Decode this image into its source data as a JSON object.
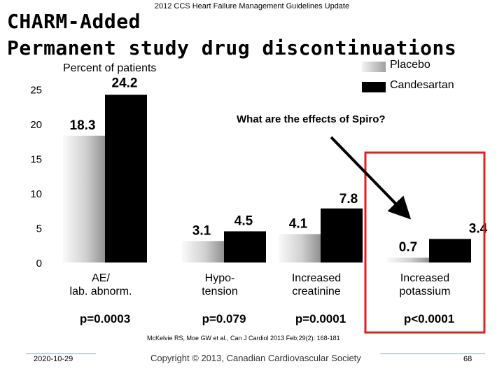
{
  "header": {
    "guideline": "2012 CCS Heart Failure Management Guidelines Update",
    "title_line1": "CHARM-Added",
    "title_line2": "Permanent study drug discontinuations"
  },
  "annotation": {
    "question": "What are the effects of Spiro?"
  },
  "colors": {
    "placebo": "#c8c8c8",
    "candesartan": "#000000",
    "highlight_box": "#e02020",
    "footer_line": "#8aa4c8"
  },
  "chart_data": {
    "type": "bar",
    "title": "CHARM-Added Permanent study drug discontinuations",
    "ylabel": "Percent of patients",
    "xlabel": "",
    "ylim": [
      0,
      25
    ],
    "yticks": [
      "0",
      "5",
      "10",
      "15",
      "20",
      "25"
    ],
    "legend": {
      "position": "top-right"
    },
    "categories": [
      {
        "line1": "AE/",
        "line2": "lab. abnorm."
      },
      {
        "line1": "Hypo-",
        "line2": "tension"
      },
      {
        "line1": "Increased",
        "line2": "creatinine"
      },
      {
        "line1": "Increased",
        "line2": "potassium"
      }
    ],
    "series": [
      {
        "name": "Placebo",
        "values": [
          18.3,
          3.1,
          4.1,
          0.7
        ],
        "labels": [
          "18.3",
          "3.1",
          "4.1",
          "0.7"
        ]
      },
      {
        "name": "Candesartan",
        "values": [
          24.2,
          4.5,
          7.8,
          3.4
        ],
        "labels": [
          "24.2",
          "4.5",
          "7.8",
          "3.4"
        ]
      }
    ],
    "p_values": [
      "p=0.0003",
      "p=0.079",
      "p=0.0001",
      "p<0.0001"
    ],
    "highlighted_category": "Increased potassium"
  },
  "citation": {
    "text": "McKelvie RS, Moe GW et al., Can J Cardiol 2013 Feb;29(2): 168-181"
  },
  "footer": {
    "date": "2020-10-29",
    "copyright": "Copyright © 2013, Canadian Cardiovascular Society",
    "page_number": "68"
  }
}
